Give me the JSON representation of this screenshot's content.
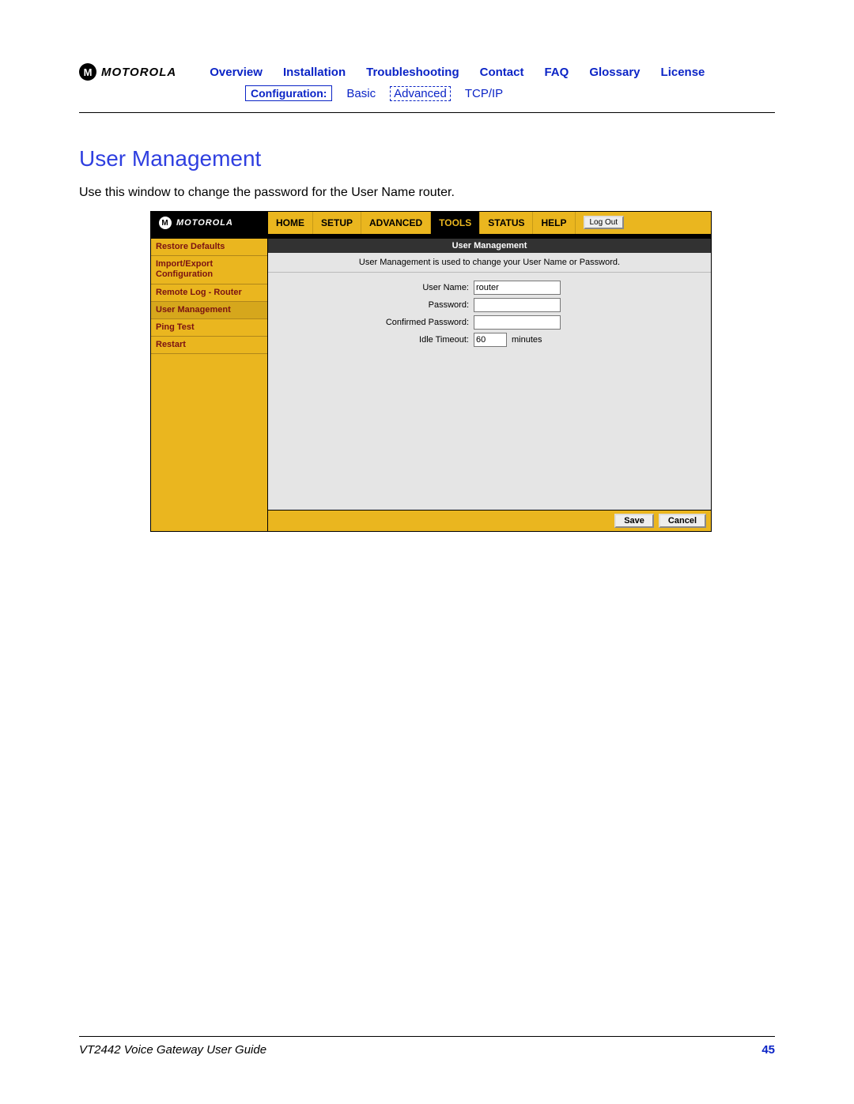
{
  "brand": {
    "wordmark": "MOTOROLA",
    "glyph": "M"
  },
  "topnav": {
    "items": [
      "Overview",
      "Installation",
      "Troubleshooting",
      "Contact",
      "FAQ",
      "Glossary",
      "License"
    ]
  },
  "subnav": {
    "label": "Configuration:",
    "items": [
      "Basic",
      "Advanced",
      "TCP/IP"
    ],
    "boxed_index": 1
  },
  "section": {
    "title": "User Management",
    "desc": "Use this window to change the password for the User Name router."
  },
  "router": {
    "tabs": [
      "HOME",
      "SETUP",
      "ADVANCED",
      "TOOLS",
      "STATUS",
      "HELP"
    ],
    "active_tab_index": 3,
    "logout": "Log Out",
    "sidebar": [
      "Restore Defaults",
      "Import/Export Configuration",
      "Remote Log - Router",
      "User Management",
      "Ping Test",
      "Restart"
    ],
    "active_sidebar_index": 3,
    "panel": {
      "header": "User Management",
      "desc": "User Management is used to change your User Name or Password.",
      "fields": {
        "username_label": "User Name:",
        "username_value": "router",
        "password_label": "Password:",
        "password_value": "",
        "confirm_label": "Confirmed Password:",
        "confirm_value": "",
        "timeout_label": "Idle Timeout:",
        "timeout_value": "60",
        "timeout_unit": "minutes"
      },
      "buttons": {
        "save": "Save",
        "cancel": "Cancel"
      }
    }
  },
  "footer": {
    "guide": "VT2442 Voice Gateway User Guide",
    "page": "45"
  },
  "colors": {
    "nav_link": "#0b24c6",
    "accent_gold": "#eab61f",
    "sidebar_text": "#7b1212",
    "panel_bg": "#e5e5e5"
  }
}
